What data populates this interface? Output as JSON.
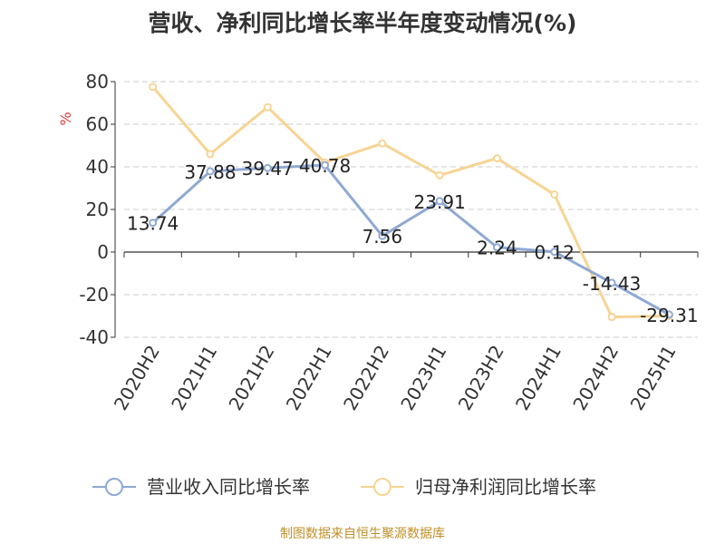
{
  "title": "营收、净利同比增长率半年度变动情况(%)",
  "footer": "制图数据来自恒生聚源数据库",
  "chart_data": {
    "type": "line",
    "title": "营收、净利同比增长率半年度变动情况(%)",
    "ylabel": "%",
    "ylim": [
      -40,
      80
    ],
    "yticks": [
      80,
      60,
      40,
      20,
      0,
      -20,
      -40
    ],
    "grid": true,
    "legend_position": "bottom",
    "categories": [
      "2020H2",
      "2021H1",
      "2021H2",
      "2022H1",
      "2022H2",
      "2023H1",
      "2023H2",
      "2024H1",
      "2024H2",
      "2025H1"
    ],
    "series": [
      {
        "name": "营业收入同比增长率",
        "color": "#8fa9d3",
        "values": [
          13.74,
          37.88,
          39.47,
          40.78,
          7.56,
          23.91,
          2.24,
          0.12,
          -14.43,
          -29.31
        ],
        "labels": [
          "13.74",
          "37.88",
          "39.47",
          "40.78",
          "7.56",
          "23.91",
          "2.24",
          "0.12",
          "-14.43",
          "-29.31"
        ]
      },
      {
        "name": "归母净利润同比增长率",
        "color": "#f7d494",
        "values": [
          77.5,
          46,
          68,
          42,
          51,
          36,
          44,
          27,
          -30.5,
          -30
        ]
      }
    ]
  }
}
